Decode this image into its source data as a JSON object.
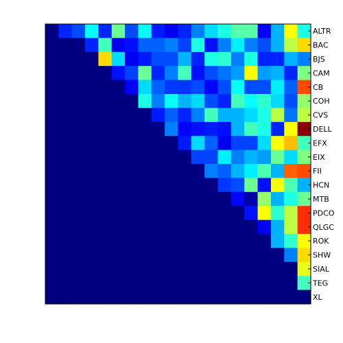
{
  "chart_data": {
    "type": "heatmap",
    "title": "",
    "xlabel": "",
    "ylabel": "",
    "row_labels": [
      "ALTR",
      "BAC",
      "BJS",
      "CAM",
      "CB",
      "COH",
      "CVS",
      "DELL",
      "EFX",
      "EIX",
      "FII",
      "HCN",
      "MTB",
      "PDCO",
      "QLGC",
      "ROK",
      "SHW",
      "SIAL",
      "TEG",
      "XL"
    ],
    "colormap": "jet",
    "value_range": [
      0,
      1
    ],
    "grid": false,
    "values": [
      [
        0,
        0.16,
        0.2,
        0.38,
        0.16,
        0.48,
        0.2,
        0.38,
        0.15,
        0.11,
        0.16,
        0.25,
        0.34,
        0.4,
        0.46,
        0.46,
        0.12,
        0.3,
        0.62,
        0.4
      ],
      [
        0,
        0,
        0,
        0.16,
        0.44,
        0.11,
        0.14,
        0.22,
        0.22,
        0.25,
        0.19,
        0.4,
        0.14,
        0.25,
        0.36,
        0.25,
        0.2,
        0.3,
        0.56,
        0.66
      ],
      [
        0,
        0,
        0,
        0,
        0.66,
        0.34,
        0.11,
        0.15,
        0.2,
        0.2,
        0.3,
        0.16,
        0.4,
        0.42,
        0.25,
        0.4,
        0.16,
        0.16,
        0.3,
        0.25
      ],
      [
        0,
        0,
        0,
        0,
        0,
        0.14,
        0.19,
        0.48,
        0.16,
        0.25,
        0.44,
        0.14,
        0.2,
        0.24,
        0.28,
        0.62,
        0.28,
        0.3,
        0.16,
        0.5
      ],
      [
        0,
        0,
        0,
        0,
        0,
        0,
        0.12,
        0.34,
        0.22,
        0.18,
        0.18,
        0.2,
        0.13,
        0.2,
        0.38,
        0.2,
        0.2,
        0.36,
        0.22,
        0.8
      ],
      [
        0,
        0,
        0,
        0,
        0,
        0,
        0,
        0.4,
        0.25,
        0.38,
        0.3,
        0.34,
        0.2,
        0.16,
        0.44,
        0.38,
        0.42,
        0.34,
        0.2,
        0.52
      ],
      [
        0,
        0,
        0,
        0,
        0,
        0,
        0,
        0,
        0.15,
        0.22,
        0.16,
        0.25,
        0.44,
        0.3,
        0.3,
        0.34,
        0.4,
        0.56,
        0.24,
        0.56
      ],
      [
        0,
        0,
        0,
        0,
        0,
        0,
        0,
        0,
        0,
        0.25,
        0.12,
        0.14,
        0.15,
        0.14,
        0.3,
        0.44,
        0.4,
        0.16,
        0.62,
        0.99
      ],
      [
        0,
        0,
        0,
        0,
        0,
        0,
        0,
        0,
        0,
        0,
        0.15,
        0.34,
        0.22,
        0.11,
        0.19,
        0.19,
        0.34,
        0.62,
        0.69,
        0.44
      ],
      [
        0,
        0,
        0,
        0,
        0,
        0,
        0,
        0,
        0,
        0,
        0,
        0.19,
        0.19,
        0.36,
        0.25,
        0.3,
        0.28,
        0.48,
        0.34,
        0.5
      ],
      [
        0,
        0,
        0,
        0,
        0,
        0,
        0,
        0,
        0,
        0,
        0,
        0,
        0.25,
        0.22,
        0.3,
        0.36,
        0.45,
        0.3,
        0.78,
        0.8
      ],
      [
        0,
        0,
        0,
        0,
        0,
        0,
        0,
        0,
        0,
        0,
        0,
        0,
        0,
        0.18,
        0.2,
        0.48,
        0.14,
        0.62,
        0.45,
        0.3
      ],
      [
        0,
        0,
        0,
        0,
        0,
        0,
        0,
        0,
        0,
        0,
        0,
        0,
        0,
        0,
        0.13,
        0.04,
        0.52,
        0.3,
        0.4,
        0.48
      ],
      [
        0,
        0,
        0,
        0,
        0,
        0,
        0,
        0,
        0,
        0,
        0,
        0,
        0,
        0,
        0,
        0.14,
        0.62,
        0.42,
        0.56,
        0.83
      ],
      [
        0,
        0,
        0,
        0,
        0,
        0,
        0,
        0,
        0,
        0,
        0,
        0,
        0,
        0,
        0,
        0,
        0.12,
        0.3,
        0.56,
        0.83
      ],
      [
        0,
        0,
        0,
        0,
        0,
        0,
        0,
        0,
        0,
        0,
        0,
        0,
        0,
        0,
        0,
        0,
        0,
        0.3,
        0.42,
        0.62
      ],
      [
        0,
        0,
        0,
        0,
        0,
        0,
        0,
        0,
        0,
        0,
        0,
        0,
        0,
        0,
        0,
        0,
        0,
        0,
        0.25,
        0.66
      ],
      [
        0,
        0,
        0,
        0,
        0,
        0,
        0,
        0,
        0,
        0,
        0,
        0,
        0,
        0,
        0,
        0,
        0,
        0,
        0,
        0.6
      ],
      [
        0,
        0,
        0,
        0,
        0,
        0,
        0,
        0,
        0,
        0,
        0,
        0,
        0,
        0,
        0,
        0,
        0,
        0,
        0,
        0.44
      ],
      [
        0,
        0,
        0,
        0,
        0,
        0,
        0,
        0,
        0,
        0,
        0,
        0,
        0,
        0,
        0,
        0,
        0,
        0,
        0,
        0
      ]
    ]
  }
}
